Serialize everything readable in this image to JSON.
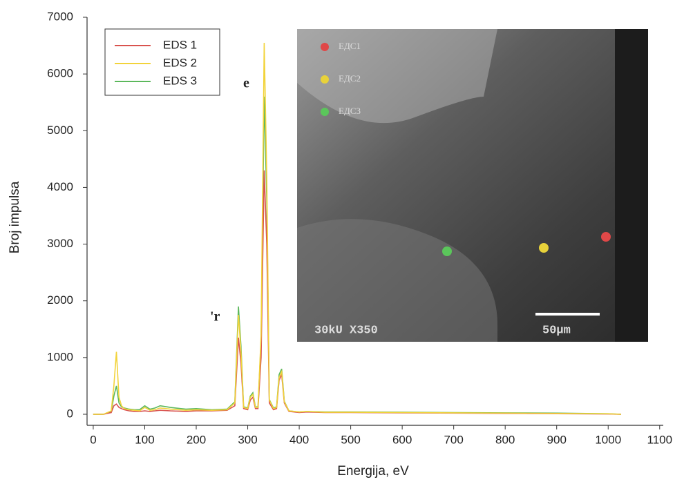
{
  "chart_data": {
    "type": "line",
    "xlabel": "Energija, eV",
    "ylabel": "Broj impulsa",
    "x": [
      0,
      20,
      35,
      40,
      45,
      50,
      55,
      60,
      70,
      80,
      90,
      100,
      110,
      120,
      130,
      150,
      180,
      200,
      230,
      260,
      275,
      282,
      287,
      292,
      300,
      305,
      310,
      315,
      320,
      326,
      332,
      337,
      342,
      350,
      356,
      361,
      366,
      371,
      380,
      400,
      415,
      450,
      500,
      600,
      700,
      800,
      900,
      1000,
      1025
    ],
    "series": [
      {
        "name": "EDS 1",
        "color": "#d9534f",
        "values": [
          0,
          0,
          30,
          150,
          180,
          120,
          100,
          80,
          60,
          50,
          50,
          60,
          50,
          60,
          70,
          60,
          50,
          60,
          60,
          70,
          150,
          1350,
          900,
          100,
          80,
          250,
          300,
          100,
          100,
          1000,
          4300,
          3000,
          200,
          80,
          100,
          600,
          700,
          200,
          50,
          30,
          40,
          30,
          30,
          25,
          20,
          15,
          10,
          5,
          0
        ]
      },
      {
        "name": "EDS 2",
        "color": "#f2d33a",
        "values": [
          0,
          0,
          60,
          500,
          1100,
          300,
          150,
          100,
          80,
          70,
          60,
          120,
          70,
          80,
          110,
          90,
          70,
          80,
          70,
          80,
          200,
          1750,
          1100,
          120,
          100,
          300,
          350,
          120,
          120,
          1400,
          6550,
          4200,
          250,
          100,
          120,
          650,
          750,
          220,
          60,
          40,
          50,
          35,
          35,
          30,
          25,
          20,
          15,
          8,
          0
        ]
      },
      {
        "name": "EDS 3",
        "color": "#5cb85c",
        "values": [
          0,
          0,
          50,
          320,
          500,
          200,
          130,
          110,
          90,
          80,
          80,
          150,
          90,
          110,
          150,
          120,
          90,
          100,
          80,
          90,
          220,
          1900,
          1200,
          130,
          110,
          320,
          380,
          130,
          130,
          1300,
          5600,
          3800,
          260,
          110,
          130,
          700,
          800,
          230,
          60,
          40,
          50,
          40,
          40,
          35,
          30,
          25,
          20,
          10,
          0
        ]
      }
    ],
    "xlim": [
      -12,
      1107
    ],
    "ylim": [
      -195,
      7000
    ],
    "xticks": [
      0,
      100,
      200,
      300,
      400,
      500,
      600,
      700,
      800,
      900,
      1000,
      1100
    ],
    "yticks": [
      0,
      1000,
      2000,
      3000,
      4000,
      5000,
      6000,
      7000
    ],
    "legend": "upper left",
    "annotations": [
      "e",
      "'r"
    ],
    "inset": {
      "labels": [
        "ЕДС1",
        "ЕДС2",
        "ЕДС3"
      ],
      "caption": "30kU X350",
      "scale": "50μm"
    }
  }
}
